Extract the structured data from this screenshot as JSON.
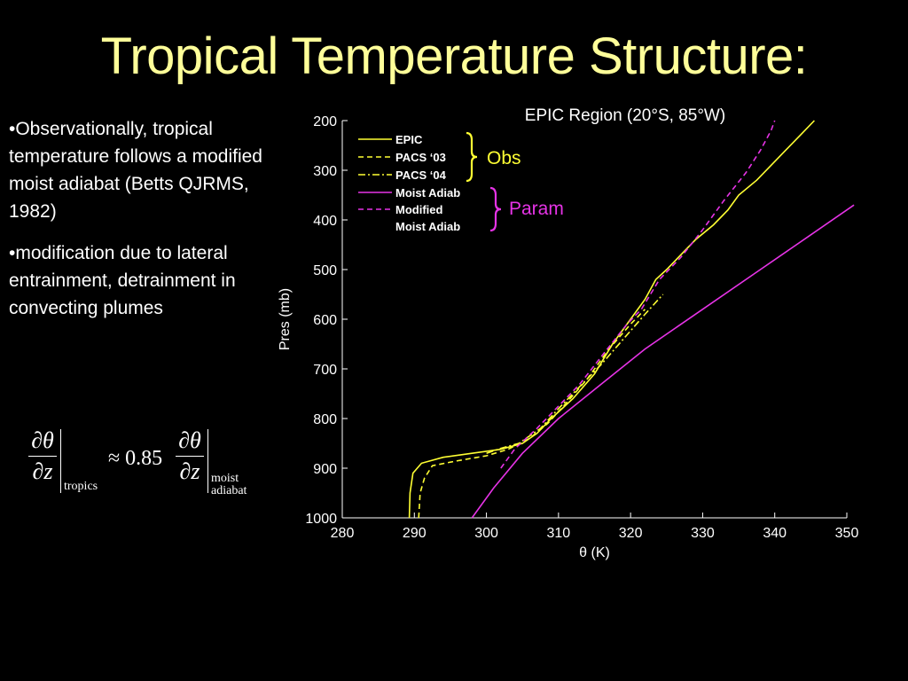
{
  "title": "Tropical Temperature Structure:",
  "bullets": [
    "•Observationally, tropical temperature follows a modified moist adiabat (Betts QJRMS, 1982)",
    "•modification due to lateral entrainment, detrainment in convecting plumes"
  ],
  "equation": {
    "numerator": "∂θ",
    "denominator": "∂z",
    "subscript_left": "tropics",
    "coefficient": "≈ 0.85",
    "subscript_right_1": "moist",
    "subscript_right_2": "adiabat"
  },
  "colors": {
    "background": "#000000",
    "title": "#ffff99",
    "yellow": "#ffff33",
    "magenta": "#e633e6",
    "axis": "#ffffff"
  },
  "chart_data": {
    "type": "line",
    "title": "EPIC Region (20°S, 85°W)",
    "xlabel": "θ (K)",
    "ylabel": "Pres (mb)",
    "xlim": [
      280,
      350
    ],
    "ylim": [
      1000,
      200
    ],
    "y_reversed": true,
    "grid": false,
    "x_ticks": [
      280,
      290,
      300,
      310,
      320,
      330,
      340,
      350
    ],
    "y_ticks": [
      200,
      300,
      400,
      500,
      600,
      700,
      800,
      900,
      1000
    ],
    "series": [
      {
        "name": "EPIC",
        "color": "#ffff33",
        "dash": "solid",
        "x": [
          289.3,
          289.4,
          289.8,
          291.0,
          294.0,
          298.0,
          302.0,
          305.0,
          307.0,
          309.0,
          312.0,
          315.0,
          317.5,
          320.0,
          322.0,
          323.5,
          325.0,
          327.0,
          329.0,
          331.5,
          333.5,
          335.0,
          337.5,
          339.5,
          341.5,
          343.5,
          345.5
        ],
        "y": [
          1000,
          950,
          910,
          890,
          878,
          870,
          862,
          850,
          830,
          800,
          760,
          710,
          650,
          600,
          560,
          520,
          500,
          470,
          440,
          410,
          380,
          350,
          320,
          290,
          260,
          230,
          200
        ]
      },
      {
        "name": "PACS ‘03",
        "color": "#ffff33",
        "dash": "6,4",
        "x": [
          290.6,
          290.8,
          291.4,
          292.5,
          296.0,
          300.0,
          303.0,
          306.0,
          308.5,
          311.0,
          314.0,
          317.0,
          320.0,
          322.0
        ],
        "y": [
          1000,
          950,
          920,
          895,
          885,
          875,
          862,
          840,
          810,
          770,
          720,
          660,
          610,
          580
        ]
      },
      {
        "name": "PACS ‘04",
        "color": "#ffff33",
        "dash": "8,3,2,3",
        "x": [
          300.0,
          302.0,
          304.5,
          307.5,
          310.0,
          313.0,
          316.0,
          319.0,
          322.0,
          324.5
        ],
        "y": [
          870,
          860,
          850,
          820,
          780,
          735,
          690,
          640,
          590,
          550
        ]
      },
      {
        "name": "Moist Adiab",
        "color": "#e633e6",
        "dash": "solid",
        "x": [
          298.0,
          301.0,
          305.0,
          310.0,
          316.0,
          322.0,
          330.0,
          338.0,
          345.0,
          351.0
        ],
        "y": [
          1000,
          940,
          870,
          800,
          730,
          660,
          580,
          500,
          430,
          370
        ]
      },
      {
        "name": "Modified Moist Adiab",
        "color": "#e633e6",
        "dash": "6,4",
        "x": [
          302.0,
          304.0,
          307.0,
          310.0,
          313.0,
          316.5,
          319.5,
          321.5,
          324.0,
          327.0,
          330.0,
          333.0,
          336.0,
          338.0,
          339.5,
          340.0
        ],
        "y": [
          900,
          860,
          820,
          775,
          730,
          665,
          610,
          580,
          520,
          475,
          420,
          360,
          305,
          260,
          220,
          200
        ]
      }
    ],
    "legend": {
      "placement": "upper-left",
      "entries": [
        "EPIC",
        "PACS ‘03",
        "PACS ‘04",
        "Moist Adiab",
        "Modified",
        "Moist Adiab"
      ],
      "groups": [
        {
          "label": "Obs",
          "color": "#ffff33"
        },
        {
          "label": "Param",
          "color": "#e633e6"
        }
      ]
    }
  }
}
